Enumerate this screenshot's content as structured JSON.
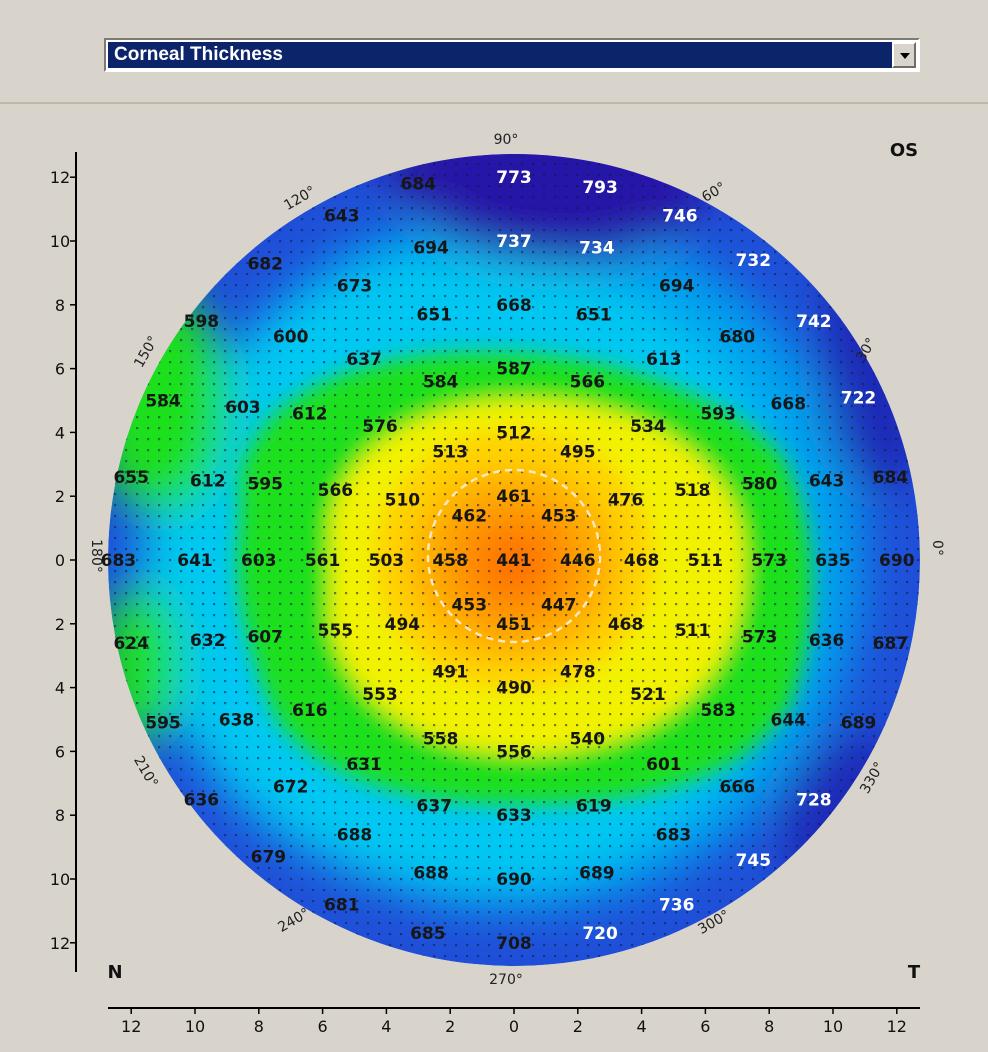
{
  "header": {
    "map_type_select": {
      "value": "Corneal Thickness"
    }
  },
  "map": {
    "eye_label": "OS",
    "nasal_label": "N",
    "temporal_label": "T",
    "angle_labels": [
      "90°",
      "60°",
      "30°",
      "0°",
      "330°",
      "300°",
      "270°",
      "240°",
      "210°",
      "180°",
      "150°",
      "120°"
    ],
    "y_axis_ticks": [
      "12",
      "10",
      "8",
      "6",
      "4",
      "2",
      "0",
      "2",
      "4",
      "6",
      "8",
      "10",
      "12"
    ],
    "x_axis_ticks": [
      "12",
      "10",
      "8",
      "6",
      "4",
      "2",
      "0",
      "2",
      "4",
      "6",
      "8",
      "10",
      "12"
    ],
    "colors": {
      "center_min": "#ff6a00",
      "yellow": "#f2f200",
      "green": "#1fe01f",
      "cyan": "#00d8f0",
      "blue": "#1f4fd8",
      "purple": "#2a0a8a"
    },
    "readings": [
      {
        "x": -3,
        "y": 11.8,
        "v": "684",
        "c": "dark"
      },
      {
        "x": 0,
        "y": 12,
        "v": "773",
        "c": "light"
      },
      {
        "x": 2.7,
        "y": 11.7,
        "v": "793",
        "c": "light"
      },
      {
        "x": 5.2,
        "y": 10.8,
        "v": "746",
        "c": "light"
      },
      {
        "x": -5.4,
        "y": 10.8,
        "v": "643",
        "c": "dark"
      },
      {
        "x": -2.6,
        "y": 9.8,
        "v": "694",
        "c": "dark"
      },
      {
        "x": 0,
        "y": 10,
        "v": "737",
        "c": "light"
      },
      {
        "x": 2.6,
        "y": 9.8,
        "v": "734",
        "c": "light"
      },
      {
        "x": 7.5,
        "y": 9.4,
        "v": "732",
        "c": "light"
      },
      {
        "x": -7.8,
        "y": 9.3,
        "v": "682",
        "c": "dark"
      },
      {
        "x": -5,
        "y": 8.6,
        "v": "673",
        "c": "dark"
      },
      {
        "x": 5.1,
        "y": 8.6,
        "v": "694",
        "c": "dark"
      },
      {
        "x": -9.8,
        "y": 7.5,
        "v": "598",
        "c": "dark"
      },
      {
        "x": -2.5,
        "y": 7.7,
        "v": "651",
        "c": "dark"
      },
      {
        "x": 0,
        "y": 8,
        "v": "668",
        "c": "dark"
      },
      {
        "x": 2.5,
        "y": 7.7,
        "v": "651",
        "c": "dark"
      },
      {
        "x": -7,
        "y": 7,
        "v": "600",
        "c": "dark"
      },
      {
        "x": 7,
        "y": 7,
        "v": "680",
        "c": "dark"
      },
      {
        "x": 9.4,
        "y": 7.5,
        "v": "742",
        "c": "light"
      },
      {
        "x": -4.7,
        "y": 6.3,
        "v": "637",
        "c": "dark"
      },
      {
        "x": 4.7,
        "y": 6.3,
        "v": "613",
        "c": "dark"
      },
      {
        "x": -2.3,
        "y": 5.6,
        "v": "584",
        "c": "dark"
      },
      {
        "x": 0,
        "y": 6,
        "v": "587",
        "c": "dark"
      },
      {
        "x": 2.3,
        "y": 5.6,
        "v": "566",
        "c": "dark"
      },
      {
        "x": -11,
        "y": 5,
        "v": "584",
        "c": "dark"
      },
      {
        "x": -8.5,
        "y": 4.8,
        "v": "603",
        "c": "dark"
      },
      {
        "x": -6.4,
        "y": 4.6,
        "v": "612",
        "c": "dark"
      },
      {
        "x": 6.4,
        "y": 4.6,
        "v": "593",
        "c": "dark"
      },
      {
        "x": 8.6,
        "y": 4.9,
        "v": "668",
        "c": "dark"
      },
      {
        "x": 10.8,
        "y": 5.1,
        "v": "722",
        "c": "light"
      },
      {
        "x": -4.2,
        "y": 4.2,
        "v": "576",
        "c": "dark"
      },
      {
        "x": 4.2,
        "y": 4.2,
        "v": "534",
        "c": "dark"
      },
      {
        "x": -2,
        "y": 3.4,
        "v": "513",
        "c": "dark"
      },
      {
        "x": 0,
        "y": 4,
        "v": "512",
        "c": "dark"
      },
      {
        "x": 2,
        "y": 3.4,
        "v": "495",
        "c": "dark"
      },
      {
        "x": -12,
        "y": 2.6,
        "v": "655",
        "c": "dark"
      },
      {
        "x": -9.6,
        "y": 2.5,
        "v": "612",
        "c": "dark"
      },
      {
        "x": -7.8,
        "y": 2.4,
        "v": "595",
        "c": "dark"
      },
      {
        "x": -5.6,
        "y": 2.2,
        "v": "566",
        "c": "dark"
      },
      {
        "x": -3.5,
        "y": 1.9,
        "v": "510",
        "c": "dark"
      },
      {
        "x": 0,
        "y": 2,
        "v": "461",
        "c": "dark"
      },
      {
        "x": 3.5,
        "y": 1.9,
        "v": "476",
        "c": "dark"
      },
      {
        "x": 5.6,
        "y": 2.2,
        "v": "518",
        "c": "dark"
      },
      {
        "x": 7.7,
        "y": 2.4,
        "v": "580",
        "c": "dark"
      },
      {
        "x": 9.8,
        "y": 2.5,
        "v": "643",
        "c": "dark"
      },
      {
        "x": 11.8,
        "y": 2.6,
        "v": "684",
        "c": "dark"
      },
      {
        "x": -1.4,
        "y": 1.4,
        "v": "462",
        "c": "dark"
      },
      {
        "x": 1.4,
        "y": 1.4,
        "v": "453",
        "c": "dark"
      },
      {
        "x": -12.4,
        "y": 0,
        "v": "683",
        "c": "dark"
      },
      {
        "x": -10,
        "y": 0,
        "v": "641",
        "c": "dark"
      },
      {
        "x": -8,
        "y": 0,
        "v": "603",
        "c": "dark"
      },
      {
        "x": -6,
        "y": 0,
        "v": "561",
        "c": "dark"
      },
      {
        "x": -4,
        "y": 0,
        "v": "503",
        "c": "dark"
      },
      {
        "x": -2,
        "y": 0,
        "v": "458",
        "c": "dark"
      },
      {
        "x": 0,
        "y": 0,
        "v": "441",
        "c": "dark"
      },
      {
        "x": 2,
        "y": 0,
        "v": "446",
        "c": "dark"
      },
      {
        "x": 4,
        "y": 0,
        "v": "468",
        "c": "dark"
      },
      {
        "x": 6,
        "y": 0,
        "v": "511",
        "c": "dark"
      },
      {
        "x": 8,
        "y": 0,
        "v": "573",
        "c": "dark"
      },
      {
        "x": 10,
        "y": 0,
        "v": "635",
        "c": "dark"
      },
      {
        "x": 12,
        "y": 0,
        "v": "690",
        "c": "dark"
      },
      {
        "x": -1.4,
        "y": -1.4,
        "v": "453",
        "c": "dark"
      },
      {
        "x": 1.4,
        "y": -1.4,
        "v": "447",
        "c": "dark"
      },
      {
        "x": 0,
        "y": -2,
        "v": "451",
        "c": "dark"
      },
      {
        "x": -12,
        "y": -2.6,
        "v": "624",
        "c": "dark"
      },
      {
        "x": -9.6,
        "y": -2.5,
        "v": "632",
        "c": "dark"
      },
      {
        "x": -7.8,
        "y": -2.4,
        "v": "607",
        "c": "dark"
      },
      {
        "x": -5.6,
        "y": -2.2,
        "v": "555",
        "c": "dark"
      },
      {
        "x": -3.5,
        "y": -2,
        "v": "494",
        "c": "dark"
      },
      {
        "x": 3.5,
        "y": -2,
        "v": "468",
        "c": "dark"
      },
      {
        "x": 5.6,
        "y": -2.2,
        "v": "511",
        "c": "dark"
      },
      {
        "x": 7.7,
        "y": -2.4,
        "v": "573",
        "c": "dark"
      },
      {
        "x": 9.8,
        "y": -2.5,
        "v": "636",
        "c": "dark"
      },
      {
        "x": 11.8,
        "y": -2.6,
        "v": "687",
        "c": "dark"
      },
      {
        "x": -2,
        "y": -3.5,
        "v": "491",
        "c": "dark"
      },
      {
        "x": 0,
        "y": -4,
        "v": "490",
        "c": "dark"
      },
      {
        "x": 2,
        "y": -3.5,
        "v": "478",
        "c": "dark"
      },
      {
        "x": -4.2,
        "y": -4.2,
        "v": "553",
        "c": "dark"
      },
      {
        "x": 4.2,
        "y": -4.2,
        "v": "521",
        "c": "dark"
      },
      {
        "x": -11,
        "y": -5.1,
        "v": "595",
        "c": "dark"
      },
      {
        "x": -8.7,
        "y": -5,
        "v": "638",
        "c": "dark"
      },
      {
        "x": -6.4,
        "y": -4.7,
        "v": "616",
        "c": "dark"
      },
      {
        "x": 6.4,
        "y": -4.7,
        "v": "583",
        "c": "dark"
      },
      {
        "x": 8.6,
        "y": -5,
        "v": "644",
        "c": "dark"
      },
      {
        "x": 10.8,
        "y": -5.1,
        "v": "689",
        "c": "dark"
      },
      {
        "x": -2.3,
        "y": -5.6,
        "v": "558",
        "c": "dark"
      },
      {
        "x": 0,
        "y": -6,
        "v": "556",
        "c": "dark"
      },
      {
        "x": 2.3,
        "y": -5.6,
        "v": "540",
        "c": "dark"
      },
      {
        "x": -4.7,
        "y": -6.4,
        "v": "631",
        "c": "dark"
      },
      {
        "x": 4.7,
        "y": -6.4,
        "v": "601",
        "c": "dark"
      },
      {
        "x": -9.8,
        "y": -7.5,
        "v": "636",
        "c": "dark"
      },
      {
        "x": -7,
        "y": -7.1,
        "v": "672",
        "c": "dark"
      },
      {
        "x": 7,
        "y": -7.1,
        "v": "666",
        "c": "dark"
      },
      {
        "x": 9.4,
        "y": -7.5,
        "v": "728",
        "c": "light"
      },
      {
        "x": -2.5,
        "y": -7.7,
        "v": "637",
        "c": "dark"
      },
      {
        "x": 0,
        "y": -8,
        "v": "633",
        "c": "dark"
      },
      {
        "x": 2.5,
        "y": -7.7,
        "v": "619",
        "c": "dark"
      },
      {
        "x": -5,
        "y": -8.6,
        "v": "688",
        "c": "dark"
      },
      {
        "x": 5,
        "y": -8.6,
        "v": "683",
        "c": "dark"
      },
      {
        "x": -7.7,
        "y": -9.3,
        "v": "679",
        "c": "dark"
      },
      {
        "x": 7.5,
        "y": -9.4,
        "v": "745",
        "c": "light"
      },
      {
        "x": -2.6,
        "y": -9.8,
        "v": "688",
        "c": "dark"
      },
      {
        "x": 0,
        "y": -10,
        "v": "690",
        "c": "dark"
      },
      {
        "x": 2.6,
        "y": -9.8,
        "v": "689",
        "c": "dark"
      },
      {
        "x": -5.4,
        "y": -10.8,
        "v": "681",
        "c": "dark"
      },
      {
        "x": 5.1,
        "y": -10.8,
        "v": "736",
        "c": "light"
      },
      {
        "x": -2.7,
        "y": -11.7,
        "v": "685",
        "c": "dark"
      },
      {
        "x": 0,
        "y": -12,
        "v": "708",
        "c": "dark"
      },
      {
        "x": 2.7,
        "y": -11.7,
        "v": "720",
        "c": "light"
      }
    ]
  }
}
